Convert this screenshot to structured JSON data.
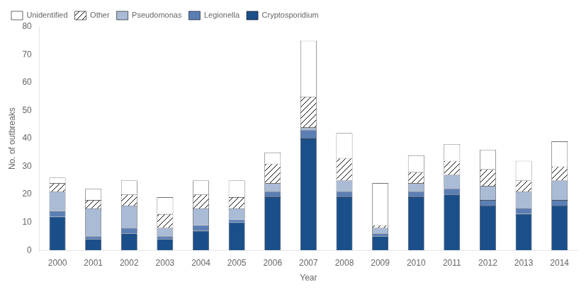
{
  "chart_data": {
    "type": "bar",
    "stacked": true,
    "xlabel": "Year",
    "ylabel": "No. of outbreaks",
    "categories": [
      "2000",
      "2001",
      "2002",
      "2003",
      "2004",
      "2005",
      "2006",
      "2007",
      "2008",
      "2009",
      "2010",
      "2011",
      "2012",
      "2013",
      "2014"
    ],
    "series": [
      {
        "name": "Cryptosporidium",
        "color": "#1B4F8A",
        "values": [
          12,
          4,
          6,
          4,
          7,
          10,
          19,
          40,
          19,
          5,
          19,
          20,
          16,
          13,
          16
        ]
      },
      {
        "name": "Legionella",
        "color": "#5B7FB5",
        "values": [
          2,
          1,
          2,
          1,
          2,
          1,
          2,
          3,
          2,
          1,
          2,
          2,
          2,
          2,
          2
        ]
      },
      {
        "name": "Pseudomonas",
        "color": "#AABBD6",
        "values": [
          7,
          10,
          8,
          3,
          6,
          4,
          3,
          1,
          4,
          2,
          3,
          5,
          5,
          6,
          7
        ]
      },
      {
        "name": "Other",
        "values": [
          3,
          3,
          4,
          5,
          5,
          4,
          7,
          11,
          8,
          1,
          4,
          5,
          6,
          4,
          5
        ]
      },
      {
        "name": "Unidentified",
        "color": "#FFFFFF",
        "values": [
          2,
          4,
          5,
          6,
          5,
          6,
          4,
          20,
          9,
          15,
          6,
          6,
          7,
          7,
          9
        ]
      }
    ],
    "ylim": [
      0,
      80
    ],
    "yticks": [
      0,
      10,
      20,
      30,
      40,
      50,
      60,
      70,
      80
    ],
    "grid": false,
    "legend": "upper left"
  }
}
